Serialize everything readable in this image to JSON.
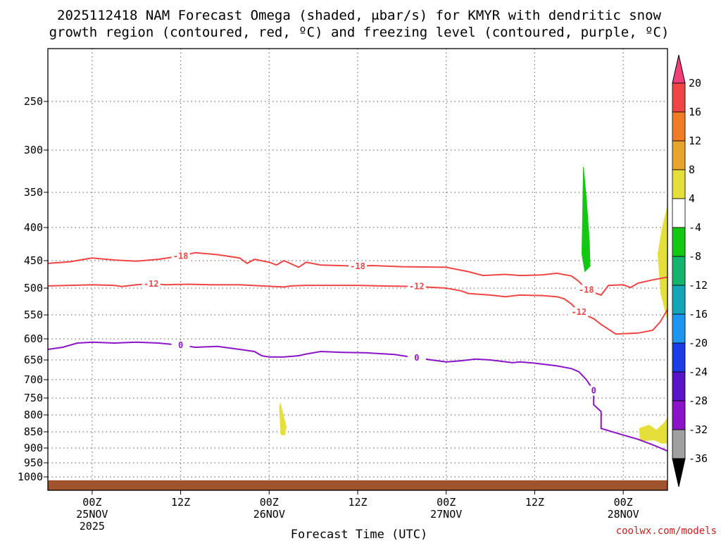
{
  "chart_data": {
    "type": "time-height cross section",
    "title_line1": "2025112418 NAM Forecast Omega (shaded, μbar/s) for KMYR with dendritic snow",
    "title_line2": "growth region (contoured, red, ºC) and freezing level (contoured, purple, ºC)",
    "xlabel": "Forecast Time (UTC)",
    "credit": "coolwx.com/models",
    "y_ticks": [
      "250",
      "300",
      "350",
      "400",
      "450",
      "500",
      "550",
      "600",
      "650",
      "700",
      "750",
      "800",
      "850",
      "900",
      "950",
      "1000"
    ],
    "y_values": [
      250,
      300,
      350,
      400,
      450,
      500,
      550,
      600,
      650,
      700,
      750,
      800,
      850,
      900,
      950,
      1000
    ],
    "x_ticks": [
      {
        "h": 6,
        "line1": "00Z",
        "line2": "25NOV",
        "line3": "2025"
      },
      {
        "h": 18,
        "line1": "12Z",
        "line2": "",
        "line3": ""
      },
      {
        "h": 30,
        "line1": "00Z",
        "line2": "26NOV",
        "line3": ""
      },
      {
        "h": 42,
        "line1": "12Z",
        "line2": "",
        "line3": ""
      },
      {
        "h": 54,
        "line1": "00Z",
        "line2": "27NOV",
        "line3": ""
      },
      {
        "h": 66,
        "line1": "12Z",
        "line2": "",
        "line3": ""
      },
      {
        "h": 78,
        "line1": "00Z",
        "line2": "28NOV",
        "line3": ""
      }
    ],
    "x_range_hours": [
      0,
      84
    ],
    "pressure_range": [
      200,
      1030
    ],
    "colorbar": {
      "labels": [
        "20",
        "16",
        "12",
        "8",
        "4",
        "-4",
        "-8",
        "-12",
        "-16",
        "-20",
        "-24",
        "-28",
        "-32",
        "-36"
      ],
      "colors": [
        "#f0407a",
        "#f04545",
        "#f07d25",
        "#e6a62e",
        "#e6de3a",
        "#ffffff",
        "#12c812",
        "#12b46e",
        "#12a6b6",
        "#1e96f0",
        "#1e3ce6",
        "#5a14c8",
        "#8c14c8",
        "#a0a0a0",
        "#000000"
      ]
    },
    "contours": [
      {
        "name": "-18C",
        "label": "-18",
        "color": "#f04545",
        "points": [
          [
            0,
            455
          ],
          [
            3,
            452
          ],
          [
            6,
            446
          ],
          [
            9,
            449
          ],
          [
            12,
            451
          ],
          [
            15,
            448
          ],
          [
            18,
            443
          ],
          [
            20,
            438
          ],
          [
            23,
            441
          ],
          [
            26,
            446
          ],
          [
            27,
            455
          ],
          [
            28,
            448
          ],
          [
            30,
            453
          ],
          [
            31,
            458
          ],
          [
            32,
            450
          ],
          [
            34,
            462
          ],
          [
            35,
            453
          ],
          [
            37,
            458
          ],
          [
            42,
            460
          ],
          [
            44,
            459
          ],
          [
            48,
            461
          ],
          [
            54,
            462
          ],
          [
            57,
            470
          ],
          [
            59,
            477
          ],
          [
            62,
            475
          ],
          [
            64,
            477
          ],
          [
            67,
            476
          ],
          [
            69,
            473
          ],
          [
            71,
            478
          ],
          [
            72,
            488
          ],
          [
            73,
            503
          ],
          [
            75,
            513
          ],
          [
            76,
            495
          ],
          [
            78,
            494
          ],
          [
            79,
            499
          ],
          [
            80,
            491
          ],
          [
            82,
            485
          ],
          [
            84,
            480
          ]
        ]
      },
      {
        "name": "-12C",
        "label": "-12",
        "color": "#f04545",
        "points": [
          [
            0,
            496
          ],
          [
            3,
            495
          ],
          [
            6,
            494
          ],
          [
            9,
            495
          ],
          [
            10,
            497
          ],
          [
            12,
            494
          ],
          [
            14,
            492
          ],
          [
            16,
            494
          ],
          [
            19,
            493
          ],
          [
            22,
            494
          ],
          [
            26,
            494
          ],
          [
            29,
            496
          ],
          [
            32,
            498
          ],
          [
            33,
            496
          ],
          [
            35,
            495
          ],
          [
            38,
            495
          ],
          [
            42,
            495
          ],
          [
            45,
            496
          ],
          [
            50,
            497
          ],
          [
            54,
            500
          ],
          [
            56,
            505
          ],
          [
            57,
            510
          ],
          [
            60,
            513
          ],
          [
            62,
            516
          ],
          [
            64,
            513
          ],
          [
            67,
            514
          ],
          [
            69,
            516
          ],
          [
            70,
            520
          ],
          [
            71,
            530
          ],
          [
            72,
            545
          ],
          [
            74,
            558
          ],
          [
            75,
            570
          ],
          [
            77,
            590
          ],
          [
            80,
            588
          ],
          [
            82,
            582
          ],
          [
            83,
            565
          ],
          [
            84,
            540
          ]
        ]
      },
      {
        "name": "0C",
        "label": "0",
        "color": "#8c14c8",
        "points": [
          [
            0,
            625
          ],
          [
            2,
            620
          ],
          [
            4,
            610
          ],
          [
            6,
            608
          ],
          [
            9,
            610
          ],
          [
            12,
            608
          ],
          [
            15,
            610
          ],
          [
            18,
            615
          ],
          [
            20,
            620
          ],
          [
            23,
            618
          ],
          [
            26,
            625
          ],
          [
            28,
            630
          ],
          [
            29,
            640
          ],
          [
            30,
            643
          ],
          [
            32,
            643
          ],
          [
            34,
            640
          ],
          [
            35,
            636
          ],
          [
            37,
            630
          ],
          [
            40,
            632
          ],
          [
            43,
            633
          ],
          [
            47,
            637
          ],
          [
            50,
            645
          ],
          [
            52,
            650
          ],
          [
            54,
            655
          ],
          [
            56,
            652
          ],
          [
            58,
            648
          ],
          [
            60,
            650
          ],
          [
            63,
            657
          ],
          [
            64,
            655
          ],
          [
            66,
            658
          ],
          [
            69,
            665
          ],
          [
            71,
            672
          ],
          [
            72,
            680
          ],
          [
            73,
            700
          ],
          [
            74,
            730
          ],
          [
            74,
            770
          ],
          [
            75,
            790
          ],
          [
            75,
            820
          ],
          [
            75,
            840
          ],
          [
            78,
            860
          ],
          [
            80,
            873
          ],
          [
            82,
            890
          ],
          [
            84,
            910
          ]
        ]
      }
    ],
    "omega_regions": [
      {
        "name": "upper-green-cell",
        "value": -8,
        "color": "#12c812",
        "points": [
          [
            72.6,
            320
          ],
          [
            73.0,
            360
          ],
          [
            73.4,
            420
          ],
          [
            73.5,
            460
          ],
          [
            72.8,
            470
          ],
          [
            72.4,
            440
          ],
          [
            72.5,
            380
          ]
        ]
      },
      {
        "name": "lower-yellow-cell-26nov",
        "value": 4,
        "color": "#e6de3a",
        "points": [
          [
            31.5,
            765
          ],
          [
            31.9,
            800
          ],
          [
            32.3,
            835
          ],
          [
            32.1,
            860
          ],
          [
            31.6,
            858
          ],
          [
            31.5,
            820
          ],
          [
            31.4,
            780
          ]
        ]
      },
      {
        "name": "right-yellow-cell-upper",
        "value": 4,
        "color": "#e6de3a",
        "points": [
          [
            84,
            370
          ],
          [
            83.3,
            400
          ],
          [
            82.7,
            440
          ],
          [
            83.1,
            510
          ],
          [
            84,
            560
          ]
        ]
      },
      {
        "name": "right-yellow-cell-lower",
        "value": 4,
        "color": "#e6de3a",
        "points": [
          [
            80.2,
            840
          ],
          [
            81.5,
            830
          ],
          [
            82.5,
            845
          ],
          [
            83.5,
            825
          ],
          [
            84,
            810
          ],
          [
            84,
            885
          ],
          [
            83.2,
            885
          ],
          [
            82.2,
            875
          ],
          [
            80.3,
            878
          ]
        ]
      }
    ],
    "terrain": {
      "name": "surface",
      "color": "#a0522d",
      "top_pressure": 1012
    }
  }
}
